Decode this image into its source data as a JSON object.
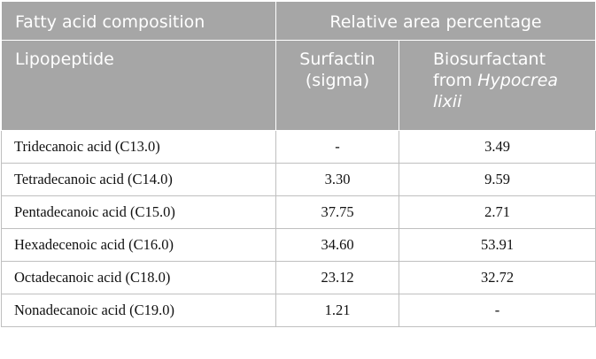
{
  "table": {
    "header": {
      "col1_group": "Fatty acid composition",
      "col2_group": "Relative area percentage",
      "row_label": "Lipopeptide",
      "col2_line1": "Surfactin",
      "col2_line2": "(sigma)",
      "col3_line1": "Biosurfactant",
      "col3_line2_prefix": "from ",
      "col3_line2_italic": "Hypocrea",
      "col3_line3_italic": "lixii"
    },
    "rows": [
      {
        "name": "Tridecanoic acid (C13.0)",
        "surfactin": "-",
        "biosurfactant": "3.49"
      },
      {
        "name": "Tetradecanoic acid (C14.0)",
        "surfactin": "3.30",
        "biosurfactant": "9.59"
      },
      {
        "name": "Pentadecanoic acid (C15.0)",
        "surfactin": "37.75",
        "biosurfactant": "2.71"
      },
      {
        "name": "Hexadecenoic acid (C16.0)",
        "surfactin": "34.60",
        "biosurfactant": "53.91"
      },
      {
        "name": "Octadecanoic acid (C18.0)",
        "surfactin": "23.12",
        "biosurfactant": "32.72"
      },
      {
        "name": "Nonadecanoic acid (C19.0)",
        "surfactin": "1.21",
        "biosurfactant": "-"
      }
    ]
  },
  "colors": {
    "header_bg": "#a6a6a6",
    "header_text": "#ffffff",
    "grid": "#bfbfbf"
  }
}
